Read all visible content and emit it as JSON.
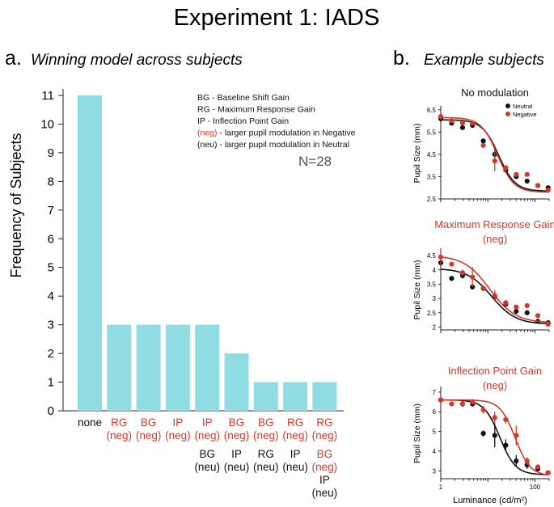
{
  "figure": {
    "title": "Experiment 1: IADS",
    "colors": {
      "bar": "#8fdce2",
      "red": "#d03a2c",
      "black": "#111111",
      "axis": "#222222",
      "gray": "#555555"
    }
  },
  "chart_data": [
    {
      "id": "winning_model",
      "type": "bar",
      "panel_letter": "a.",
      "title": "Winning model across subjects",
      "ylabel": "Frequency of Subjects",
      "xlabel": "",
      "ylim": [
        0,
        11
      ],
      "yticks": [
        "0",
        "1",
        "2",
        "3",
        "4",
        "5",
        "6",
        "7",
        "8",
        "9",
        "10",
        "11"
      ],
      "categories": [
        {
          "lines": [
            {
              "text": "none",
              "color": "black"
            }
          ]
        },
        {
          "lines": [
            {
              "text": "RG",
              "color": "red"
            },
            {
              "text": "(neg)",
              "color": "red"
            }
          ]
        },
        {
          "lines": [
            {
              "text": "BG",
              "color": "red"
            },
            {
              "text": "(neg)",
              "color": "red"
            }
          ]
        },
        {
          "lines": [
            {
              "text": "IP",
              "color": "red"
            },
            {
              "text": "(neg)",
              "color": "red"
            }
          ]
        },
        {
          "lines": [
            {
              "text": "IP",
              "color": "red"
            },
            {
              "text": "(neg)",
              "color": "red"
            },
            {
              "text": "BG",
              "color": "black"
            },
            {
              "text": "(neu)",
              "color": "black"
            }
          ]
        },
        {
          "lines": [
            {
              "text": "BG",
              "color": "red"
            },
            {
              "text": "(neg)",
              "color": "red"
            },
            {
              "text": "IP",
              "color": "black"
            },
            {
              "text": "(neu)",
              "color": "black"
            }
          ]
        },
        {
          "lines": [
            {
              "text": "BG",
              "color": "red"
            },
            {
              "text": "(neg)",
              "color": "red"
            },
            {
              "text": "RG",
              "color": "black"
            },
            {
              "text": "(neu)",
              "color": "black"
            }
          ]
        },
        {
          "lines": [
            {
              "text": "RG",
              "color": "red"
            },
            {
              "text": "(neg)",
              "color": "red"
            },
            {
              "text": "IP",
              "color": "black"
            },
            {
              "text": "(neu)",
              "color": "black"
            }
          ]
        },
        {
          "lines": [
            {
              "text": "RG",
              "color": "red"
            },
            {
              "text": "(neg)",
              "color": "red"
            },
            {
              "text": "BG",
              "color": "red"
            },
            {
              "text": "(neg)",
              "color": "red"
            },
            {
              "text": "IP",
              "color": "black"
            },
            {
              "text": "(neu)",
              "color": "black"
            }
          ]
        }
      ],
      "values": [
        11,
        3,
        3,
        3,
        3,
        2,
        1,
        1,
        1
      ],
      "legend_lines": [
        {
          "text": "BG - Baseline Shift Gain",
          "color": "black"
        },
        {
          "text": "RG - Maximum Response Gain",
          "color": "black"
        },
        {
          "text": "IP - Inflection Point Gain",
          "color": "black"
        },
        {
          "prefix": "(neg)",
          "text": " - larger pupil modulation in Negative",
          "color": "red"
        },
        {
          "text": "(neu) - larger pupil modulation in Neutral",
          "color": "black"
        }
      ],
      "annotation": "N=28"
    },
    {
      "id": "no_modulation",
      "type": "line",
      "panel_letter": "b.",
      "panel_title": "Example subjects",
      "title": "No modulation",
      "title_color": "black",
      "ylabel": "Pupil Size (mm)",
      "xscale": "log",
      "xlim": [
        1,
        200
      ],
      "ylim": [
        2.5,
        6.6
      ],
      "yticks": [
        2.5,
        3.5,
        4.5,
        5.5,
        6.5
      ],
      "ytick_labels": [
        "2.5",
        "3.5",
        "4.5",
        "5.5",
        "6.5"
      ],
      "legend": [
        "Neutral",
        "Negative"
      ],
      "series": [
        {
          "name": "Neutral",
          "color": "black",
          "x": [
            1,
            1.7,
            2.9,
            4.7,
            8,
            14,
            24,
            40,
            68,
            115,
            190
          ],
          "y": [
            6.1,
            5.9,
            5.7,
            5.8,
            5.1,
            4.5,
            3.8,
            3.5,
            3.3,
            3.1,
            3.0
          ],
          "err": [
            0.15,
            0.1,
            0.1,
            0.1,
            0.1,
            0.35,
            0.1,
            0.1,
            0.1,
            0.1,
            0.1
          ],
          "fit": [
            6.05,
            2.85,
            17,
            2.5
          ]
        },
        {
          "name": "Negative",
          "color": "red",
          "x": [
            1,
            1.7,
            2.9,
            4.7,
            8,
            14,
            24,
            40,
            68,
            115,
            190
          ],
          "y": [
            6.2,
            6.0,
            5.9,
            5.9,
            4.9,
            4.2,
            3.9,
            3.6,
            3.6,
            3.1,
            2.9
          ],
          "err": [
            0.15,
            0.1,
            0.1,
            0.1,
            0.1,
            0.45,
            0.1,
            0.1,
            0.1,
            0.1,
            0.1
          ],
          "fit": [
            6.15,
            2.8,
            16,
            2.5
          ]
        }
      ]
    },
    {
      "id": "max_response_gain",
      "type": "line",
      "title": "Maximum Response Gain",
      "subtitle": "(neg)",
      "title_color": "red",
      "ylabel": "Pupil Size (mm)",
      "xscale": "log",
      "xlim": [
        1,
        200
      ],
      "ylim": [
        1.9,
        4.7
      ],
      "yticks": [
        2,
        2.5,
        3,
        3.5,
        4,
        4.5
      ],
      "ytick_labels": [
        "2",
        "2.5",
        "3",
        "3.5",
        "4",
        "4.5"
      ],
      "series": [
        {
          "name": "Neutral",
          "color": "black",
          "x": [
            1,
            1.7,
            2.9,
            4.7,
            8,
            14,
            24,
            40,
            68,
            115,
            190
          ],
          "y": [
            4.25,
            3.7,
            3.8,
            3.4,
            3.35,
            3.05,
            2.8,
            2.55,
            2.5,
            2.2,
            2.15
          ],
          "err": [
            0.12,
            0.08,
            0.1,
            0.08,
            0.08,
            0.1,
            0.08,
            0.08,
            0.08,
            0.08,
            0.08
          ],
          "fit": [
            4.05,
            2.1,
            12,
            1.7
          ]
        },
        {
          "name": "Negative",
          "color": "red",
          "x": [
            1,
            1.7,
            2.9,
            4.7,
            8,
            14,
            24,
            40,
            68,
            115,
            190
          ],
          "y": [
            4.45,
            4.2,
            3.9,
            3.75,
            3.35,
            3.1,
            2.85,
            2.7,
            2.75,
            2.4,
            2.1
          ],
          "err": [
            0.3,
            0.08,
            0.1,
            0.35,
            0.1,
            0.2,
            0.08,
            0.08,
            0.08,
            0.08,
            0.08
          ],
          "fit": [
            4.5,
            2.15,
            11,
            1.6
          ]
        }
      ]
    },
    {
      "id": "inflection_point_gain",
      "type": "line",
      "title": "Inflection Point Gain",
      "subtitle": "(neg)",
      "title_color": "red",
      "xlabel": "Luminance (cd/m²)",
      "ylabel": "Pupil Size (mm)",
      "xscale": "log",
      "xlim": [
        1,
        200
      ],
      "xticks": [
        1,
        100
      ],
      "xtick_labels": [
        "1",
        "100"
      ],
      "ylim": [
        2.6,
        7.2
      ],
      "yticks": [
        3,
        4,
        5,
        6,
        7
      ],
      "ytick_labels": [
        "3",
        "4",
        "5",
        "6",
        "7"
      ],
      "series": [
        {
          "name": "Neutral",
          "color": "black",
          "x": [
            1,
            2.9,
            4.7,
            8,
            14,
            24,
            40,
            68,
            115,
            190
          ],
          "y": [
            6.6,
            6.4,
            6.4,
            4.9,
            4.8,
            4.3,
            3.5,
            3.3,
            3.1,
            2.9
          ],
          "err": [
            0.15,
            0.15,
            0.15,
            0.15,
            0.6,
            0.3,
            0.3,
            0.2,
            0.1,
            0.1
          ],
          "fit": [
            6.6,
            2.8,
            18,
            2.6
          ]
        },
        {
          "name": "Negative",
          "color": "red",
          "x": [
            1,
            1.7,
            2.9,
            4.7,
            8,
            14,
            24,
            40,
            68,
            115,
            190
          ],
          "y": [
            6.6,
            6.4,
            6.4,
            6.5,
            6.1,
            5.7,
            5.6,
            4.8,
            3.5,
            3.2,
            2.9
          ],
          "err": [
            0.15,
            0.1,
            0.1,
            0.15,
            0.2,
            0.3,
            0.2,
            0.5,
            0.2,
            0.1,
            0.1
          ],
          "fit": [
            6.6,
            2.75,
            38,
            2.7
          ]
        }
      ]
    }
  ]
}
